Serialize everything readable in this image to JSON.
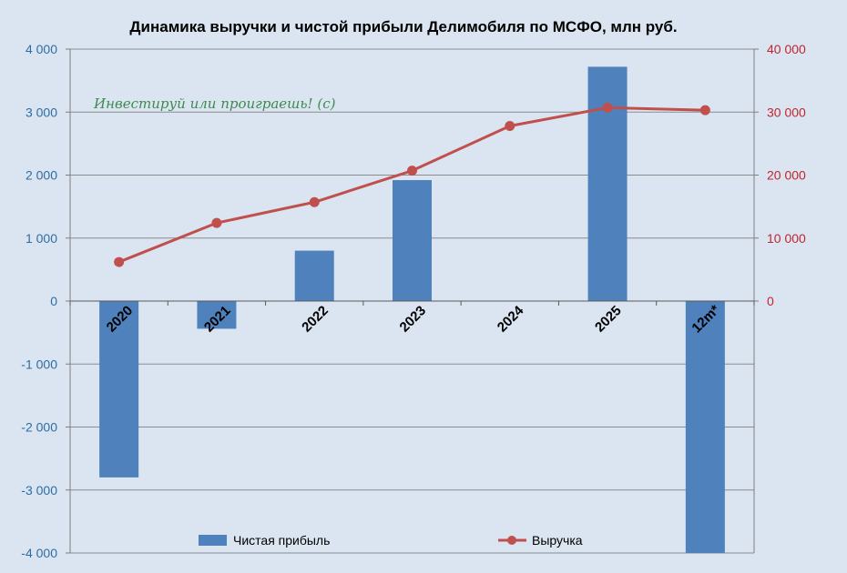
{
  "chart_data": {
    "type": "bar+line",
    "title": "Динамика выручки и чистой прибыли Делимобиля по МСФО, млн руб.",
    "annotation": "Инвестируй или проиграешь! (с)",
    "categories": [
      "2020",
      "2021",
      "2022",
      "2023",
      "2024",
      "2025",
      "12m*"
    ],
    "series": [
      {
        "name": "Чистая прибыль",
        "type": "bar",
        "axis": "left",
        "color": "#4f81bd",
        "values": [
          -2800,
          -440,
          800,
          1920,
          0,
          3720,
          -4000
        ]
      },
      {
        "name": "Выручка",
        "type": "line",
        "axis": "right",
        "color": "#c0504d",
        "values": [
          6200,
          12400,
          15700,
          20700,
          27800,
          30700,
          30300
        ]
      }
    ],
    "y_left": {
      "range": [
        -4000,
        4000
      ],
      "ticks": [
        4000,
        3000,
        2000,
        1000,
        0,
        -1000,
        -2000,
        -3000,
        -4000
      ],
      "tick_labels": [
        "4 000",
        "3 000",
        "2 000",
        "1 000",
        "0",
        "-1 000",
        "-2 000",
        "-3 000",
        "-4 000"
      ]
    },
    "y_right": {
      "range": [
        -40000,
        40000
      ],
      "ticks": [
        40000,
        30000,
        20000,
        10000,
        0
      ],
      "tick_labels": [
        "40 000",
        "30 000",
        "20 000",
        "10 000",
        "0"
      ]
    },
    "grid": true,
    "legend_position": "bottom"
  }
}
